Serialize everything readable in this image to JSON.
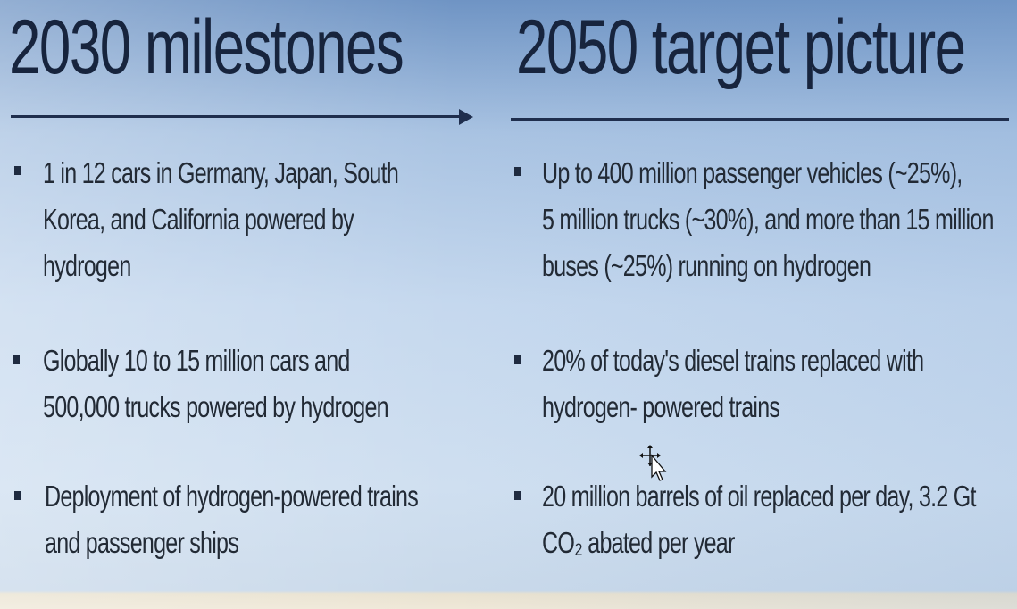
{
  "left": {
    "title": "2030 milestones",
    "bullets": [
      [
        "1 in 12 cars in Germany, Japan, South",
        "Korea, and California powered by",
        "hydrogen"
      ],
      [
        "Globally 10 to 15 million cars and",
        "500,000 trucks powered by hydrogen"
      ],
      [
        "Deployment of hydrogen-powered trains",
        "and passenger ships"
      ]
    ]
  },
  "right": {
    "title": "2050 target picture",
    "bullets": [
      [
        "Up to 400 million passenger vehicles (~25%),",
        "5 million trucks (~30%), and more than 15 million",
        "buses (~25%) running on hydrogen"
      ],
      [
        "20% of today's diesel trains replaced with",
        "hydrogen- powered trains"
      ],
      [
        "20 million barrels of oil replaced per day, 3.2 Gt",
        "CO₂ abated per year"
      ]
    ]
  },
  "cursor_icon": "move-cursor-icon"
}
